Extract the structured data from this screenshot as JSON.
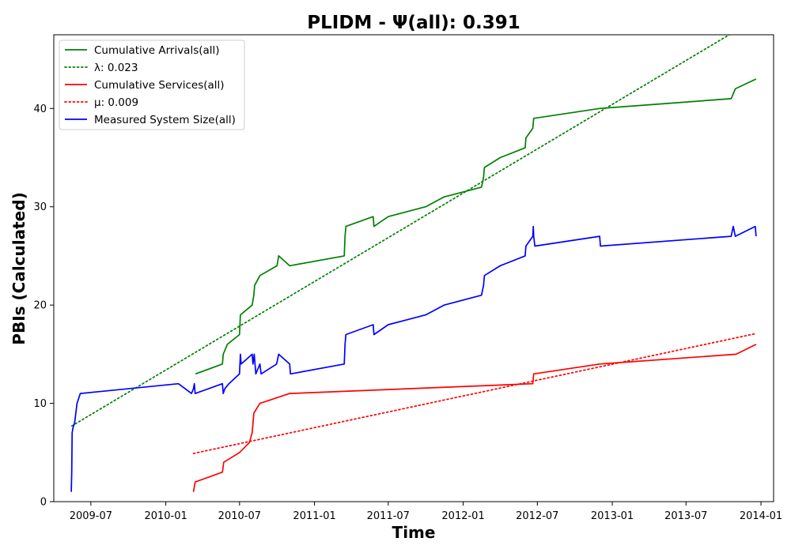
{
  "chart_data": {
    "type": "line",
    "title": "PLIDM -  Ψ(all): 0.391",
    "xlabel": "Time",
    "ylabel": "PBIs (Calculated)",
    "xlim": [
      "2009-04-01",
      "2014-02-01"
    ],
    "ylim": [
      0,
      47.5
    ],
    "x_ticks": [
      "2009-07",
      "2010-01",
      "2010-07",
      "2011-01",
      "2011-07",
      "2012-01",
      "2012-07",
      "2013-01",
      "2013-07",
      "2014-01"
    ],
    "y_ticks": [
      0,
      10,
      20,
      30,
      40
    ],
    "grid": false,
    "legend_position": "top-left",
    "series": [
      {
        "name": "Cumulative Arrivals(all)",
        "color": "#008000",
        "style": "solid",
        "points": [
          [
            "2010-03-15",
            13
          ],
          [
            "2010-05-20",
            14
          ],
          [
            "2010-05-22",
            15
          ],
          [
            "2010-06-01",
            16
          ],
          [
            "2010-07-01",
            17
          ],
          [
            "2010-07-03",
            19
          ],
          [
            "2010-08-01",
            20
          ],
          [
            "2010-08-05",
            21
          ],
          [
            "2010-08-07",
            22
          ],
          [
            "2010-08-20",
            23
          ],
          [
            "2010-10-01",
            24
          ],
          [
            "2010-10-05",
            25
          ],
          [
            "2010-11-01",
            24
          ],
          [
            "2011-03-15",
            25
          ],
          [
            "2011-03-17",
            27
          ],
          [
            "2011-03-19",
            28
          ],
          [
            "2011-05-25",
            29
          ],
          [
            "2011-05-27",
            28
          ],
          [
            "2011-07-01",
            29
          ],
          [
            "2011-10-01",
            30
          ],
          [
            "2011-11-15",
            31
          ],
          [
            "2012-02-15",
            32
          ],
          [
            "2012-02-20",
            33
          ],
          [
            "2012-02-22",
            34
          ],
          [
            "2012-04-01",
            35
          ],
          [
            "2012-06-01",
            36
          ],
          [
            "2012-06-03",
            37
          ],
          [
            "2012-06-20",
            38
          ],
          [
            "2012-06-22",
            39
          ],
          [
            "2012-12-01",
            40
          ],
          [
            "2013-10-20",
            41
          ],
          [
            "2013-10-30",
            42
          ],
          [
            "2013-12-20",
            43
          ]
        ]
      },
      {
        "name": "λ: 0.023",
        "color": "#008000",
        "style": "dotted",
        "points": [
          [
            "2009-05-15",
            7.7
          ],
          [
            "2013-10-15",
            47.5
          ]
        ]
      },
      {
        "name": "Cumulative Services(all)",
        "color": "#ff0000",
        "style": "solid",
        "points": [
          [
            "2010-03-10",
            1
          ],
          [
            "2010-03-14",
            2
          ],
          [
            "2010-05-20",
            3
          ],
          [
            "2010-05-23",
            4
          ],
          [
            "2010-07-01",
            5
          ],
          [
            "2010-07-25",
            6
          ],
          [
            "2010-08-01",
            7
          ],
          [
            "2010-08-05",
            9
          ],
          [
            "2010-08-20",
            10
          ],
          [
            "2010-11-01",
            11
          ],
          [
            "2012-06-20",
            12
          ],
          [
            "2012-06-22",
            13
          ],
          [
            "2012-12-01",
            14
          ],
          [
            "2013-11-01",
            15
          ],
          [
            "2013-12-20",
            16
          ]
        ]
      },
      {
        "name": "μ: 0.009",
        "color": "#ff0000",
        "style": "dotted",
        "points": [
          [
            "2010-03-10",
            4.9
          ],
          [
            "2013-12-20",
            17.1
          ]
        ]
      },
      {
        "name": "Measured System Size(all)",
        "color": "#0000ff",
        "style": "solid",
        "points": [
          [
            "2009-05-14",
            1
          ],
          [
            "2009-05-15",
            3
          ],
          [
            "2009-05-16",
            7
          ],
          [
            "2009-05-18",
            7.5
          ],
          [
            "2009-05-22",
            8
          ],
          [
            "2009-05-28",
            10
          ],
          [
            "2009-06-05",
            11
          ],
          [
            "2010-02-01",
            12
          ],
          [
            "2010-03-05",
            11
          ],
          [
            "2010-03-10",
            11.5
          ],
          [
            "2010-03-12",
            12
          ],
          [
            "2010-03-14",
            11
          ],
          [
            "2010-05-20",
            12
          ],
          [
            "2010-05-22",
            11
          ],
          [
            "2010-05-26",
            11.5
          ],
          [
            "2010-06-05",
            12
          ],
          [
            "2010-07-01",
            13
          ],
          [
            "2010-07-03",
            15
          ],
          [
            "2010-07-05",
            14
          ],
          [
            "2010-08-01",
            15
          ],
          [
            "2010-08-03",
            14
          ],
          [
            "2010-08-06",
            15
          ],
          [
            "2010-08-10",
            13
          ],
          [
            "2010-08-20",
            14
          ],
          [
            "2010-08-23",
            13
          ],
          [
            "2010-09-30",
            14
          ],
          [
            "2010-10-05",
            15
          ],
          [
            "2010-11-01",
            14
          ],
          [
            "2010-11-03",
            13
          ],
          [
            "2011-03-15",
            14
          ],
          [
            "2011-03-17",
            16
          ],
          [
            "2011-03-19",
            17
          ],
          [
            "2011-05-25",
            18
          ],
          [
            "2011-05-27",
            17
          ],
          [
            "2011-07-01",
            18
          ],
          [
            "2011-10-01",
            19
          ],
          [
            "2011-11-15",
            20
          ],
          [
            "2012-02-15",
            21
          ],
          [
            "2012-02-20",
            22
          ],
          [
            "2012-02-22",
            23
          ],
          [
            "2012-04-01",
            24
          ],
          [
            "2012-06-01",
            25
          ],
          [
            "2012-06-03",
            26
          ],
          [
            "2012-06-20",
            27
          ],
          [
            "2012-06-21",
            28
          ],
          [
            "2012-06-22",
            27
          ],
          [
            "2012-06-25",
            26
          ],
          [
            "2012-12-01",
            27
          ],
          [
            "2012-12-03",
            26
          ],
          [
            "2013-10-20",
            27
          ],
          [
            "2013-10-25",
            28
          ],
          [
            "2013-10-30",
            27
          ],
          [
            "2013-12-18",
            28
          ],
          [
            "2013-12-20",
            27
          ]
        ]
      }
    ]
  }
}
